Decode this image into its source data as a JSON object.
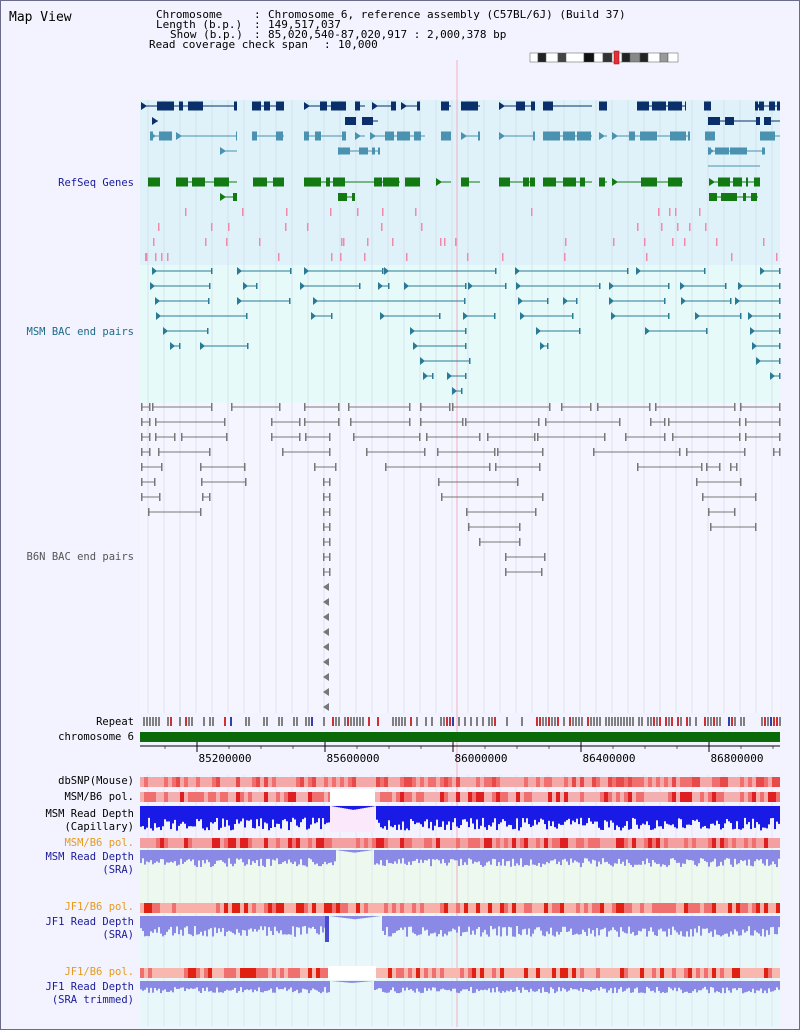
{
  "page": {
    "title": "Map View"
  },
  "info": {
    "chromosome_label": "Chromosome",
    "chromosome_value": "Chromosome 6, reference assembly (C57BL/6J) (Build 37)",
    "length_label": "Length (b.p.)",
    "length_value": "149,517,037",
    "show_label": "Show (b.p.)",
    "show_value": "85,020,540-87,020,917 : 2,000,378 bp",
    "coverage_label": "Read coverage check span",
    "coverage_value": "10,000"
  },
  "tracks": {
    "refseq": "RefSeq Genes",
    "msm_bac": "MSM BAC end pairs",
    "b6n_bac": "B6N BAC end pairs",
    "repeat": "Repeat",
    "chromosome": "chromosome 6",
    "dbsnp": "dbSNP(Mouse)",
    "msm_b6_pol_1": "MSM/B6 pol.",
    "msm_read_depth_cap_1": "MSM Read Depth",
    "msm_read_depth_cap_2": "(Capillary)",
    "msm_b6_pol_2": "MSM/B6 pol.",
    "msm_read_depth_sra_1": "MSM Read Depth",
    "msm_read_depth_sra_2": "(SRA)",
    "jf1_b6_pol_1": "JF1/B6 pol.",
    "jf1_read_depth_sra_1": "JF1 Read Depth",
    "jf1_read_depth_sra_2": "(SRA)",
    "jf1_b6_pol_2": "JF1/B6 pol.",
    "jf1_read_depth_trim_1": "JF1 Read Depth",
    "jf1_read_depth_trim_2": "(SRA trimmed)"
  },
  "axis": {
    "ticks": [
      "85200000",
      "85600000",
      "86000000",
      "86400000",
      "86800000"
    ]
  },
  "colors": {
    "refseq_bg": "#dff2fa",
    "msm_bg": "#e6fafa",
    "gene_navy": "#0a2f6a",
    "gene_teal": "#4a92b0",
    "gene_green": "#137a13",
    "msm_line": "#2a7a96",
    "b6n_line": "#777777",
    "chromosome_green": "#0a6a0a",
    "depth_blue": "#1a1ae6",
    "depth_lilac": "#8a8ae6",
    "label_blue": "#1a1a9a",
    "label_teal": "#1a6a8a",
    "label_orange": "#e69a1a"
  },
  "chromosome_ideogram": {
    "state": "shown"
  }
}
